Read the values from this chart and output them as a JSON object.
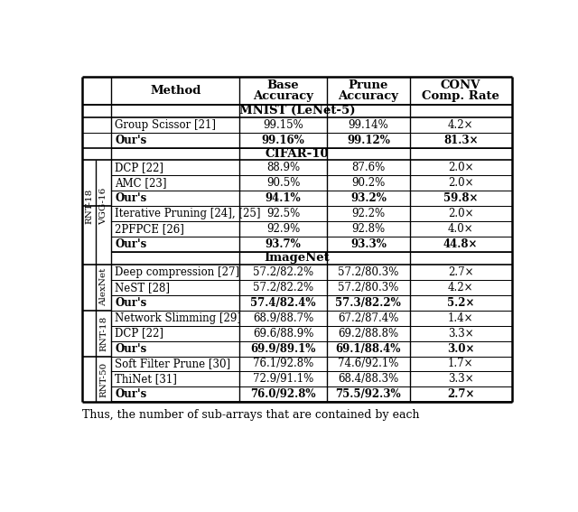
{
  "rows": [
    {
      "method": "Group Scissor [21]",
      "base": "99.15%",
      "prune": "99.14%",
      "conv": "4.2×",
      "bold": false
    },
    {
      "method": "Our's",
      "base": "99.16%",
      "prune": "99.12%",
      "conv": "81.3×",
      "bold": true
    },
    {
      "method": "DCP [22]",
      "base": "88.9%",
      "prune": "87.6%",
      "conv": "2.0×",
      "bold": false
    },
    {
      "method": "AMC [23]",
      "base": "90.5%",
      "prune": "90.2%",
      "conv": "2.0×",
      "bold": false
    },
    {
      "method": "Our's",
      "base": "94.1%",
      "prune": "93.2%",
      "conv": "59.8×",
      "bold": true
    },
    {
      "method": "Iterative Pruning [24], [25]",
      "base": "92.5%",
      "prune": "92.2%",
      "conv": "2.0×",
      "bold": false
    },
    {
      "method": "2PFPCE [26]",
      "base": "92.9%",
      "prune": "92.8%",
      "conv": "4.0×",
      "bold": false
    },
    {
      "method": "Our's",
      "base": "93.7%",
      "prune": "93.3%",
      "conv": "44.8×",
      "bold": true
    },
    {
      "method": "Deep compression [27]",
      "base": "57.2/82.2%",
      "prune": "57.2/80.3%",
      "conv": "2.7×",
      "bold": false
    },
    {
      "method": "NeST [28]",
      "base": "57.2/82.2%",
      "prune": "57.2/80.3%",
      "conv": "4.2×",
      "bold": false
    },
    {
      "method": "Our's",
      "base": "57.4/82.4%",
      "prune": "57.3/82.2%",
      "conv": "5.2×",
      "bold": true
    },
    {
      "method": "Network Slimming [29]",
      "base": "68.9/88.7%",
      "prune": "67.2/87.4%",
      "conv": "1.4×",
      "bold": false
    },
    {
      "method": "DCP [22]",
      "base": "69.6/88.9%",
      "prune": "69.2/88.8%",
      "conv": "3.3×",
      "bold": false
    },
    {
      "method": "Our's",
      "base": "69.9/89.1%",
      "prune": "69.1/88.4%",
      "conv": "3.0×",
      "bold": true
    },
    {
      "method": "Soft Filter Prune [30]",
      "base": "76.1/92.8%",
      "prune": "74.6/92.1%",
      "conv": "1.7×",
      "bold": false
    },
    {
      "method": "ThiNet [31]",
      "base": "72.9/91.1%",
      "prune": "68.4/88.3%",
      "conv": "3.3×",
      "bold": false
    },
    {
      "method": "Our's",
      "base": "76.0/92.8%",
      "prune": "75.5/92.3%",
      "conv": "2.7×",
      "bold": true
    }
  ],
  "bottom_text": "Thus, the number of sub-arrays that are contained by each",
  "figsize": [
    6.4,
    5.67
  ],
  "dpi": 100
}
